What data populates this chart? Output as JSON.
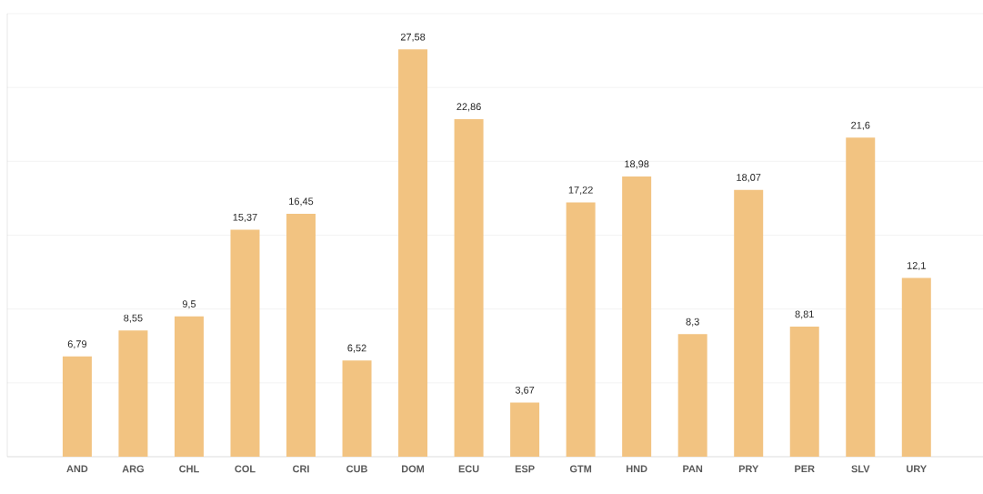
{
  "chart_data": {
    "type": "bar",
    "categories": [
      "AND",
      "ARG",
      "CHL",
      "COL",
      "CRI",
      "CUB",
      "DOM",
      "ECU",
      "ESP",
      "GTM",
      "HND",
      "PAN",
      "PRY",
      "PER",
      "SLV",
      "URY"
    ],
    "values": [
      6.79,
      8.55,
      9.5,
      15.37,
      16.45,
      6.52,
      27.58,
      22.86,
      3.67,
      17.22,
      18.98,
      8.3,
      18.07,
      8.81,
      21.6,
      12.1
    ],
    "value_labels": [
      "6,79",
      "8,55",
      "9,5",
      "15,37",
      "16,45",
      "6,52",
      "27,58",
      "22,86",
      "3,67",
      "17,22",
      "18,98",
      "8,3",
      "18,07",
      "8,81",
      "21,6",
      "12,1"
    ],
    "color": "#f2c381",
    "ylim": [
      0,
      30
    ],
    "yticks": [
      {
        "value": 0,
        "label": null
      },
      {
        "value": 5,
        "label": null
      },
      {
        "value": 10,
        "label": null
      },
      {
        "value": 15,
        "label": null
      },
      {
        "value": 20,
        "label": null
      },
      {
        "value": 25,
        "label": null
      },
      {
        "value": 30,
        "label": null
      }
    ],
    "tick_labels": "x",
    "grid": "y"
  }
}
